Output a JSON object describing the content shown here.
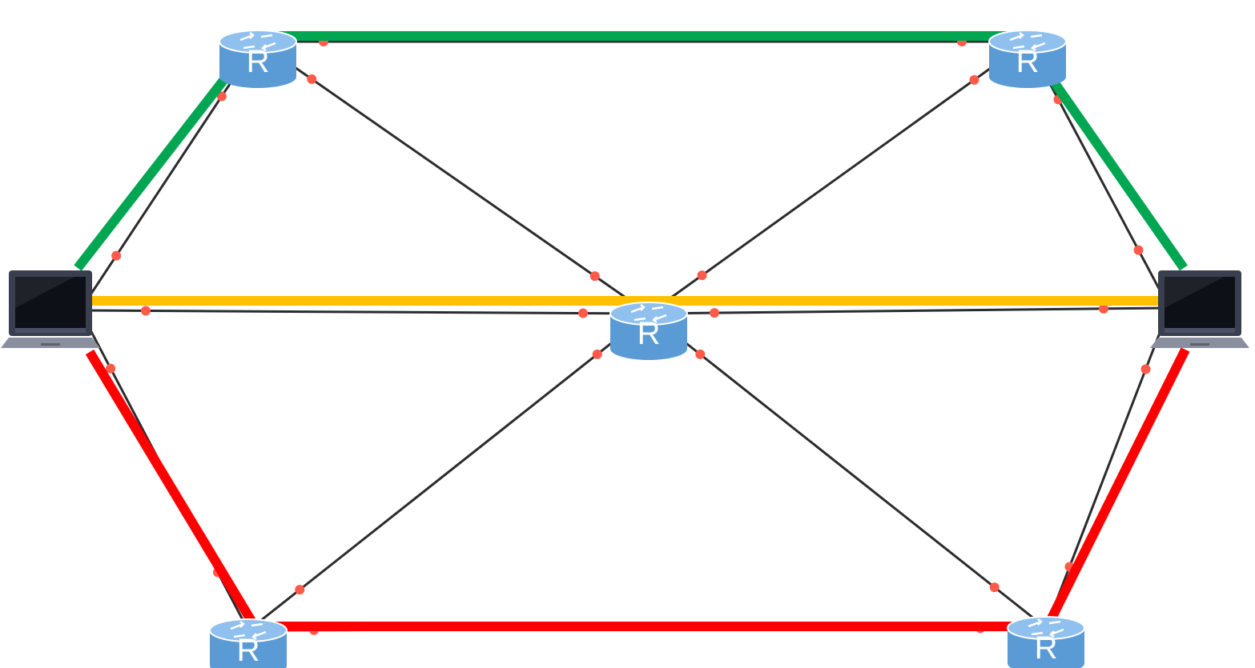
{
  "diagram": {
    "node_label": "R",
    "colors": {
      "link": "#2b2b2b",
      "port_dot": "#ff5a4a",
      "path_green": "#00a651",
      "path_yellow": "#ffc000",
      "path_red": "#ff0000",
      "router_body": "#5b9bd5",
      "router_top": "#8fc0ee",
      "laptop_frame": "#3a3f4f",
      "laptop_base": "#8a8fa0"
    },
    "nodes": [
      {
        "id": "router-top-left",
        "type": "router"
      },
      {
        "id": "router-top-right",
        "type": "router"
      },
      {
        "id": "router-center",
        "type": "router"
      },
      {
        "id": "router-bottom-left",
        "type": "router"
      },
      {
        "id": "router-bottom-right",
        "type": "router"
      },
      {
        "id": "laptop-left",
        "type": "laptop"
      },
      {
        "id": "laptop-right",
        "type": "laptop"
      }
    ],
    "links": [
      [
        "laptop-left",
        "router-top-left"
      ],
      [
        "router-top-left",
        "router-top-right"
      ],
      [
        "router-top-right",
        "laptop-right"
      ],
      [
        "laptop-left",
        "router-center"
      ],
      [
        "router-center",
        "laptop-right"
      ],
      [
        "laptop-left",
        "router-bottom-left"
      ],
      [
        "router-bottom-left",
        "router-bottom-right"
      ],
      [
        "router-bottom-right",
        "laptop-right"
      ],
      [
        "router-top-left",
        "router-center"
      ],
      [
        "router-top-right",
        "router-center"
      ],
      [
        "router-bottom-left",
        "router-center"
      ],
      [
        "router-bottom-right",
        "router-center"
      ]
    ],
    "highlighted_paths": [
      {
        "id": "green-path",
        "color_key": "path_green",
        "nodes": [
          "laptop-left",
          "router-top-left",
          "router-top-right",
          "laptop-right"
        ]
      },
      {
        "id": "yellow-path",
        "color_key": "path_yellow",
        "nodes": [
          "laptop-left",
          "router-center",
          "laptop-right"
        ]
      },
      {
        "id": "red-path",
        "color_key": "path_red",
        "nodes": [
          "laptop-left",
          "router-bottom-left",
          "router-bottom-right",
          "laptop-right"
        ]
      }
    ]
  }
}
